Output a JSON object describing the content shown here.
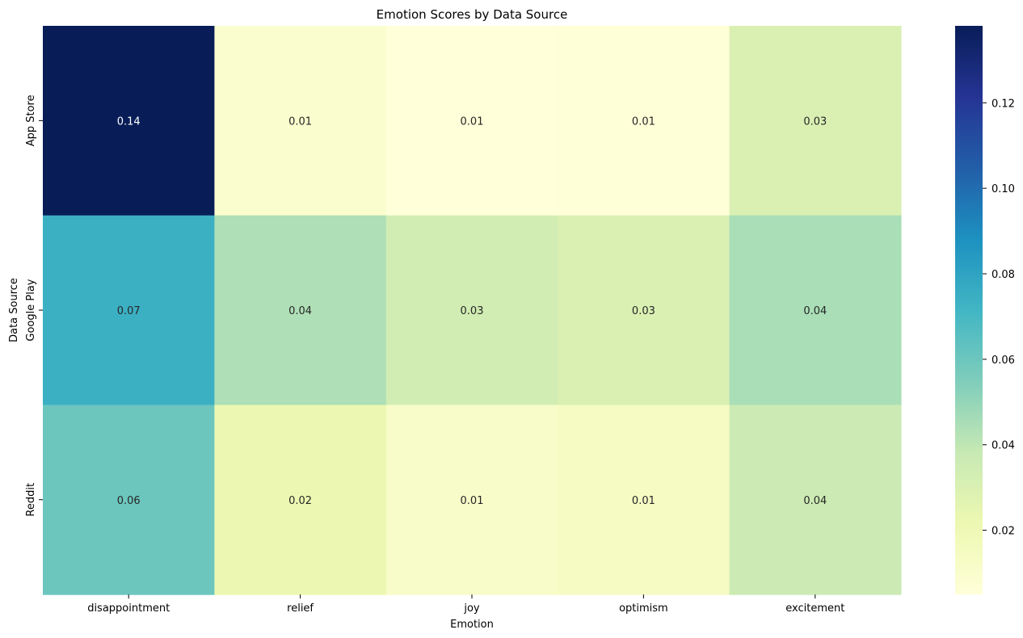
{
  "chart_data": {
    "type": "heatmap",
    "title": "Emotion Scores by Data Source",
    "xlabel": "Emotion",
    "ylabel": "Data Source",
    "x_categories": [
      "disappointment",
      "relief",
      "joy",
      "optimism",
      "excitement"
    ],
    "y_categories": [
      "App Store",
      "Google Play",
      "Reddit"
    ],
    "values": [
      [
        0.138,
        0.01,
        0.005,
        0.006,
        0.03
      ],
      [
        0.074,
        0.044,
        0.034,
        0.03,
        0.045
      ],
      [
        0.06,
        0.022,
        0.012,
        0.014,
        0.036
      ]
    ],
    "annotations": [
      [
        "0.14",
        "0.01",
        "0.01",
        "0.01",
        "0.03"
      ],
      [
        "0.07",
        "0.04",
        "0.03",
        "0.03",
        "0.04"
      ],
      [
        "0.06",
        "0.02",
        "0.01",
        "0.01",
        "0.04"
      ]
    ],
    "colormap": "YlGnBu",
    "color_range": [
      0.005,
      0.138
    ],
    "colorbar_ticks": [
      "0.02",
      "0.04",
      "0.06",
      "0.08",
      "0.10",
      "0.12"
    ],
    "colorbar_tick_values": [
      0.02,
      0.04,
      0.06,
      0.08,
      0.1,
      0.12
    ],
    "grid": false,
    "legend": "colorbar-right"
  }
}
